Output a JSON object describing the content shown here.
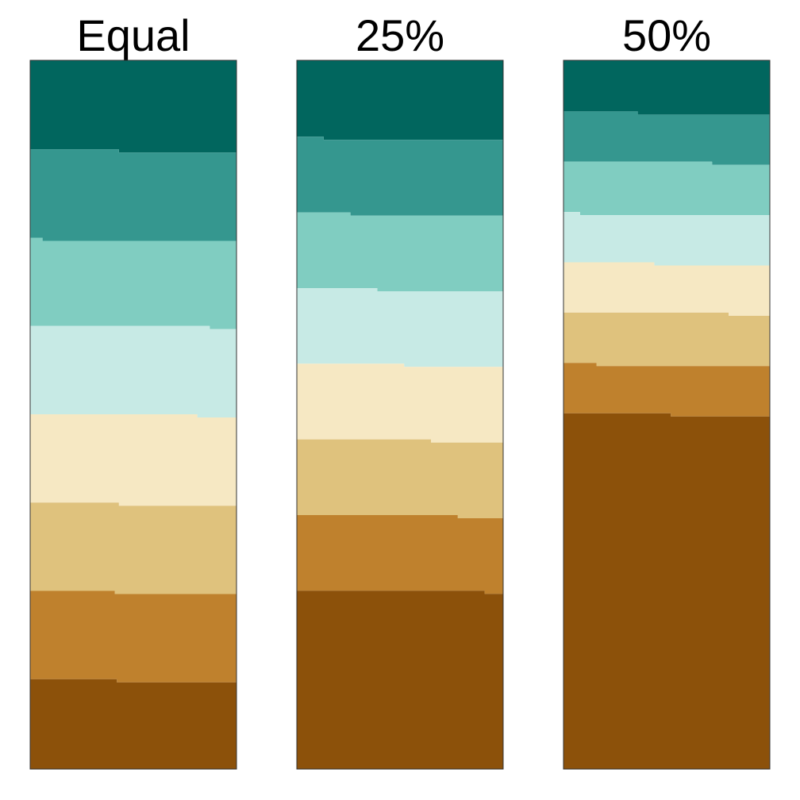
{
  "chart_data": {
    "type": "bar",
    "stacked": true,
    "normalized": true,
    "orientation": "vertical",
    "axes_visible": false,
    "grid": false,
    "legend": "none",
    "colors": [
      "#01665e",
      "#35978f",
      "#80cdc1",
      "#c7eae5",
      "#f6e8c3",
      "#dfc27d",
      "#bf812d",
      "#8c510a"
    ],
    "panels": [
      {
        "title": "Equal",
        "layer_shares": [
          0.125,
          0.125,
          0.125,
          0.125,
          0.125,
          0.125,
          0.125,
          0.125
        ],
        "step_positions": [
          0.43,
          0.06,
          0.87,
          0.81,
          0.43,
          0.41,
          0.42
        ]
      },
      {
        "title": "25%",
        "layer_shares": [
          0.107,
          0.107,
          0.107,
          0.107,
          0.107,
          0.107,
          0.107,
          0.25
        ],
        "step_positions": [
          0.13,
          0.26,
          0.39,
          0.52,
          0.65,
          0.78,
          0.91
        ]
      },
      {
        "title": "50%",
        "layer_shares": [
          0.071,
          0.071,
          0.071,
          0.071,
          0.071,
          0.071,
          0.071,
          0.5
        ],
        "step_positions": [
          0.36,
          0.72,
          0.08,
          0.44,
          0.8,
          0.16,
          0.52
        ]
      }
    ]
  }
}
